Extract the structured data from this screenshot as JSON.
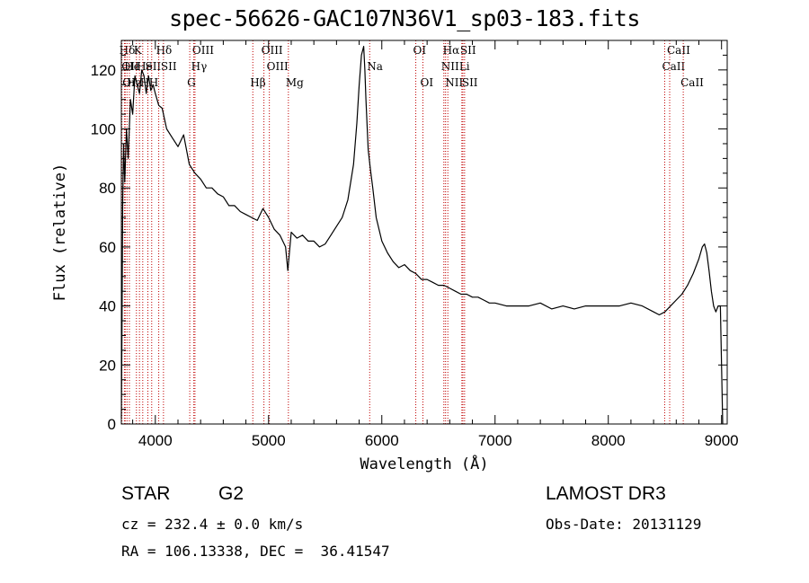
{
  "chart_data": {
    "type": "line",
    "title": "spec-56626-GAC107N36V1_sp03-183.fits",
    "xlabel": "Wavelength (Å)",
    "ylabel": "Flux (relative)",
    "xlim": [
      3700,
      9050
    ],
    "ylim": [
      0,
      130
    ],
    "xticks": [
      "4000",
      "5000",
      "6000",
      "7000",
      "8000",
      "9000"
    ],
    "yticks": [
      "0",
      "20",
      "40",
      "60",
      "80",
      "100",
      "120"
    ],
    "xtick_values": [
      4000,
      5000,
      6000,
      7000,
      8000,
      9000
    ],
    "ytick_values": [
      0,
      20,
      40,
      60,
      80,
      100,
      120
    ],
    "series": [
      {
        "name": "flux",
        "color": "#000000",
        "x": [
          3700,
          3705,
          3712,
          3720,
          3730,
          3745,
          3760,
          3780,
          3800,
          3820,
          3840,
          3860,
          3880,
          3900,
          3920,
          3940,
          3960,
          3980,
          4000,
          4030,
          4060,
          4100,
          4150,
          4200,
          4250,
          4300,
          4350,
          4400,
          4450,
          4500,
          4550,
          4600,
          4650,
          4700,
          4750,
          4800,
          4850,
          4900,
          4950,
          5000,
          5050,
          5100,
          5150,
          5170,
          5200,
          5250,
          5300,
          5350,
          5400,
          5450,
          5500,
          5550,
          5600,
          5650,
          5700,
          5750,
          5780,
          5800,
          5820,
          5840,
          5850,
          5860,
          5880,
          5900,
          5920,
          5950,
          6000,
          6050,
          6100,
          6150,
          6200,
          6250,
          6300,
          6350,
          6400,
          6450,
          6500,
          6550,
          6600,
          6650,
          6700,
          6750,
          6800,
          6850,
          6900,
          6950,
          7000,
          7100,
          7200,
          7300,
          7400,
          7500,
          7600,
          7700,
          7800,
          7900,
          8000,
          8100,
          8200,
          8300,
          8400,
          8450,
          8500,
          8550,
          8600,
          8650,
          8700,
          8750,
          8800,
          8830,
          8850,
          8870,
          8890,
          8910,
          8930,
          8950,
          8970,
          8990,
          9010
        ],
        "y": [
          2,
          28,
          75,
          95,
          82,
          100,
          90,
          110,
          105,
          118,
          115,
          112,
          120,
          118,
          112,
          118,
          113,
          115,
          112,
          108,
          107,
          100,
          97,
          94,
          98,
          88,
          85,
          83,
          80,
          80,
          78,
          77,
          74,
          74,
          72,
          71,
          70,
          69,
          73,
          70,
          66,
          64,
          60,
          52,
          65,
          63,
          64,
          62,
          62,
          60,
          61,
          64,
          67,
          70,
          76,
          88,
          102,
          115,
          125,
          128,
          120,
          110,
          93,
          86,
          80,
          70,
          62,
          58,
          55,
          53,
          54,
          52,
          51,
          49,
          49,
          48,
          47,
          47,
          46,
          45,
          44,
          44,
          43,
          43,
          42,
          41,
          41,
          40,
          40,
          40,
          41,
          39,
          40,
          39,
          40,
          40,
          40,
          40,
          41,
          40,
          38,
          37,
          38,
          40,
          42,
          44,
          47,
          51,
          56,
          60,
          61,
          58,
          52,
          45,
          40,
          38,
          40,
          40,
          0
        ]
      }
    ],
    "line_markers": [
      {
        "label": "Hδ",
        "wavelength": 3705,
        "row": 1
      },
      {
        "label": "OII",
        "wavelength": 3727,
        "row": 2
      },
      {
        "label": "Oi",
        "wavelength": 3734,
        "row": 3
      },
      {
        "label": "He",
        "wavelength": 3750,
        "row": 2
      },
      {
        "label": "Hz",
        "wavelength": 3771,
        "row": 3
      },
      {
        "label": "K",
        "wavelength": 3833,
        "row": 1
      },
      {
        "label": "He",
        "wavelength": 3860,
        "row": 2
      },
      {
        "label": "H",
        "wavelength": 3889,
        "row": 3
      },
      {
        "label": "SII",
        "wavelength": 3934,
        "row": 2
      },
      {
        "label": "Hδ",
        "wavelength": 4030,
        "row": 1
      },
      {
        "label": "SII",
        "wavelength": 4072,
        "row": 2
      },
      {
        "label": "H",
        "wavelength": 3968,
        "row": 3
      },
      {
        "label": "OIII",
        "wavelength": 4350,
        "row": 1
      },
      {
        "label": "Hγ",
        "wavelength": 4340,
        "row": 2
      },
      {
        "label": "G",
        "wavelength": 4304,
        "row": 3
      },
      {
        "label": "Hβ",
        "wavelength": 4861,
        "row": 3
      },
      {
        "label": "OIII",
        "wavelength": 4959,
        "row": 1
      },
      {
        "label": "OIII",
        "wavelength": 5007,
        "row": 2
      },
      {
        "label": "Mg",
        "wavelength": 5175,
        "row": 3
      },
      {
        "label": "Na",
        "wavelength": 5893,
        "row": 2
      },
      {
        "label": "OI",
        "wavelength": 6300,
        "row": 1
      },
      {
        "label": "OI",
        "wavelength": 6363,
        "row": 3
      },
      {
        "label": "Hα",
        "wavelength": 6563,
        "row": 1
      },
      {
        "label": "NII",
        "wavelength": 6548,
        "row": 2
      },
      {
        "label": "NII",
        "wavelength": 6583,
        "row": 3
      },
      {
        "label": "Li",
        "wavelength": 6707,
        "row": 2
      },
      {
        "label": "SII",
        "wavelength": 6716,
        "row": 1
      },
      {
        "label": "SII",
        "wavelength": 6731,
        "row": 3
      },
      {
        "label": "CaII",
        "wavelength": 8542,
        "row": 1
      },
      {
        "label": "CaII",
        "wavelength": 8498,
        "row": 2
      },
      {
        "label": "CaII",
        "wavelength": 8662,
        "row": 3
      }
    ]
  },
  "info": {
    "object_class": "STAR",
    "subclass": "G2",
    "survey": "LAMOST DR3",
    "cz_line": "cz = 232.4 ± 0.0 km/s",
    "obs_date_line": "Obs-Date: 20131129",
    "coords_line": "RA = 106.13338, DEC =  36.41547"
  },
  "colors": {
    "line": "#000000",
    "marker": "#c00000",
    "axis": "#000000"
  }
}
